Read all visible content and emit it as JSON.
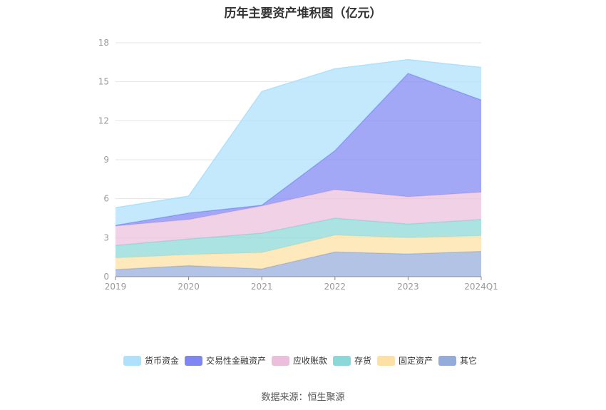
{
  "chart_data": {
    "type": "area",
    "stacked": true,
    "title": "历年主要资产堆积图（亿元）",
    "categories": [
      "2019",
      "2020",
      "2021",
      "2022",
      "2023",
      "2024Q1"
    ],
    "ylim": [
      0,
      18
    ],
    "yticks": [
      0,
      3,
      6,
      9,
      12,
      15,
      18
    ],
    "grid": true,
    "legend_position": "bottom",
    "series": [
      {
        "name": "其它",
        "color": "#94acdb",
        "values": [
          0.55,
          0.85,
          0.6,
          1.9,
          1.75,
          1.95
        ]
      },
      {
        "name": "固定资产",
        "color": "#fde0a4",
        "values": [
          0.9,
          0.85,
          1.25,
          1.3,
          1.25,
          1.2
        ]
      },
      {
        "name": "存货",
        "color": "#8ad8d8",
        "values": [
          0.95,
          1.2,
          1.5,
          1.3,
          1.05,
          1.25
        ]
      },
      {
        "name": "应收账款",
        "color": "#ebbfdc",
        "values": [
          1.5,
          1.5,
          2.1,
          2.2,
          2.1,
          2.1
        ]
      },
      {
        "name": "交易性金融资产",
        "color": "#7f86f2",
        "values": [
          0.05,
          0.5,
          0.05,
          3.0,
          9.5,
          7.1
        ]
      },
      {
        "name": "货币资金",
        "color": "#aee1fb",
        "values": [
          1.35,
          1.3,
          8.75,
          6.3,
          1.05,
          2.5
        ]
      }
    ],
    "legend_order": [
      "货币资金",
      "交易性金融资产",
      "应收账款",
      "存货",
      "固定资产",
      "其它"
    ]
  },
  "source": "数据来源：恒生聚源"
}
